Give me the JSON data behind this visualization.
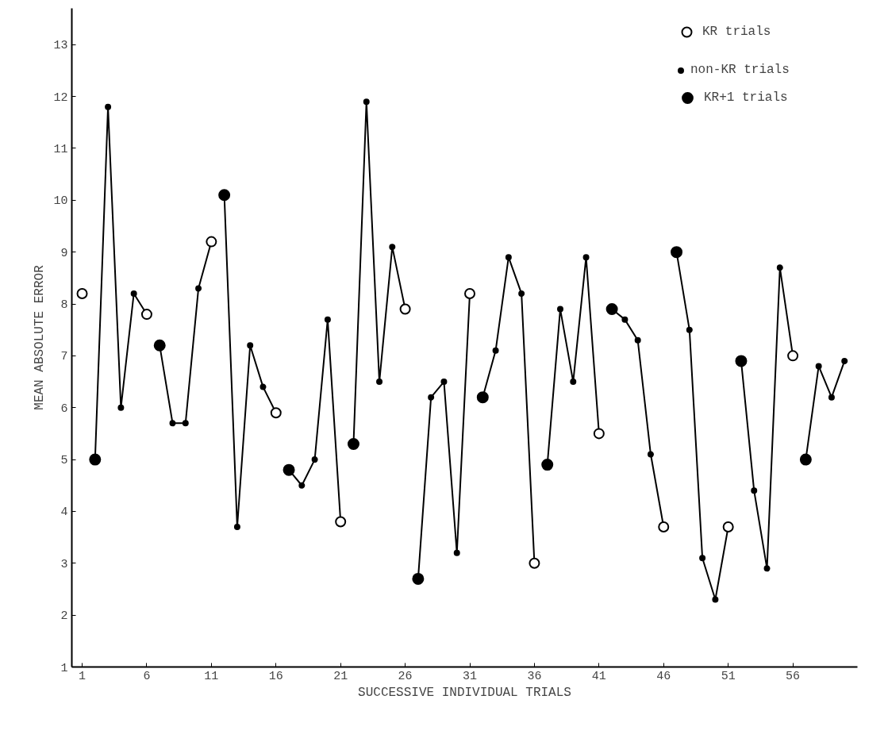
{
  "chart_data": {
    "type": "line",
    "xlabel": "SUCCESSIVE INDIVIDUAL TRIALS",
    "ylabel": "MEAN ABSOLUTE ERROR",
    "xlim": [
      0.2,
      61
    ],
    "xticks": [
      1,
      6,
      11,
      16,
      21,
      26,
      31,
      36,
      41,
      46,
      51,
      56
    ],
    "ylim": [
      1,
      13.7
    ],
    "yticks": [
      1,
      2,
      3,
      4,
      5,
      6,
      7,
      8,
      9,
      10,
      11,
      12,
      13
    ],
    "grid": false,
    "legend": "top right",
    "line_style": "solid",
    "series": [
      {
        "color": "#000000",
        "x": [
          2,
          3,
          4,
          5,
          6
        ],
        "values": [
          5.0,
          11.8,
          6.0,
          8.2,
          7.8
        ]
      },
      {
        "type": "line",
        "color": "#000000",
        "x": [
          7,
          8,
          9,
          10,
          11
        ],
        "values": [
          7.2,
          5.7,
          5.7,
          8.3,
          9.2
        ]
      },
      {
        "type": "line",
        "color": "#000000",
        "x": [
          12,
          13,
          14,
          15,
          16
        ],
        "values": [
          10.1,
          3.7,
          7.2,
          6.4,
          5.9
        ]
      },
      {
        "type": "line",
        "color": "#000000",
        "x": [
          17,
          18,
          19,
          20,
          21
        ],
        "values": [
          4.8,
          4.5,
          5.0,
          7.7,
          3.8
        ]
      },
      {
        "type": "line",
        "color": "#000000",
        "x": [
          22,
          23,
          24,
          25,
          26
        ],
        "values": [
          5.3,
          11.9,
          6.5,
          9.1,
          7.9
        ]
      },
      {
        "type": "line",
        "color": "#000000",
        "x": [
          27,
          28,
          29,
          30,
          31
        ],
        "values": [
          2.7,
          6.2,
          6.5,
          3.2,
          8.2
        ]
      },
      {
        "type": "line",
        "color": "#000000",
        "x": [
          32,
          33,
          34,
          35,
          36
        ],
        "values": [
          6.2,
          7.1,
          8.9,
          8.2,
          3.0
        ]
      },
      {
        "type": "line",
        "color": "#000000",
        "x": [
          37,
          38,
          39,
          40,
          41
        ],
        "values": [
          4.9,
          7.9,
          6.5,
          8.9,
          5.5
        ]
      },
      {
        "type": "line",
        "color": "#000000",
        "x": [
          42,
          43,
          44,
          45,
          46
        ],
        "values": [
          7.9,
          7.7,
          7.3,
          5.1,
          3.7
        ]
      },
      {
        "type": "line",
        "color": "#000000",
        "x": [
          47,
          48,
          49,
          50,
          51
        ],
        "values": [
          9.0,
          7.5,
          3.1,
          2.3,
          3.7
        ]
      },
      {
        "type": "line",
        "color": "#000000",
        "x": [
          52,
          53,
          54,
          55,
          56
        ],
        "values": [
          6.9,
          4.4,
          2.9,
          8.7,
          7.0
        ]
      },
      {
        "type": "line",
        "color": "#000000",
        "x": [
          57,
          58,
          59,
          60
        ],
        "values": [
          5.0,
          6.8,
          6.2,
          6.9
        ]
      },
      {
        "type": "scatter",
        "name": "KR trials",
        "color": "#ffffff",
        "marker": "circle",
        "x": [
          1,
          6,
          11,
          16,
          21,
          26,
          31,
          36,
          41,
          46,
          51,
          56
        ],
        "values": [
          8.2,
          7.8,
          9.2,
          5.9,
          3.8,
          7.9,
          8.2,
          3.0,
          5.5,
          3.7,
          3.7,
          7.0
        ]
      },
      {
        "type": "scatter",
        "name": "non-KR trials",
        "color": "#000000",
        "marker": "circle",
        "x": [
          3,
          4,
          5,
          8,
          9,
          10,
          13,
          14,
          15,
          18,
          19,
          20,
          23,
          24,
          25,
          28,
          29,
          30,
          33,
          34,
          35,
          38,
          39,
          40,
          43,
          44,
          45,
          48,
          49,
          50,
          53,
          54,
          55,
          58,
          59,
          60
        ],
        "values": [
          11.8,
          6.0,
          8.2,
          5.7,
          5.7,
          8.3,
          3.7,
          7.2,
          6.4,
          4.5,
          5.0,
          7.7,
          11.9,
          6.5,
          9.1,
          6.2,
          6.5,
          3.2,
          7.1,
          8.9,
          8.2,
          7.9,
          6.5,
          8.9,
          7.7,
          7.3,
          5.1,
          7.5,
          3.1,
          2.3,
          4.4,
          2.9,
          8.7,
          6.8,
          6.2,
          6.9
        ]
      },
      {
        "type": "scatter",
        "name": "KR+1 trials",
        "color": "#000000",
        "marker": "circle",
        "x": [
          2,
          7,
          12,
          17,
          22,
          27,
          32,
          37,
          42,
          47,
          52,
          57
        ],
        "values": [
          5.0,
          7.2,
          10.1,
          4.8,
          5.3,
          2.7,
          6.2,
          4.9,
          7.9,
          9.0,
          6.9,
          5.0
        ]
      }
    ]
  }
}
